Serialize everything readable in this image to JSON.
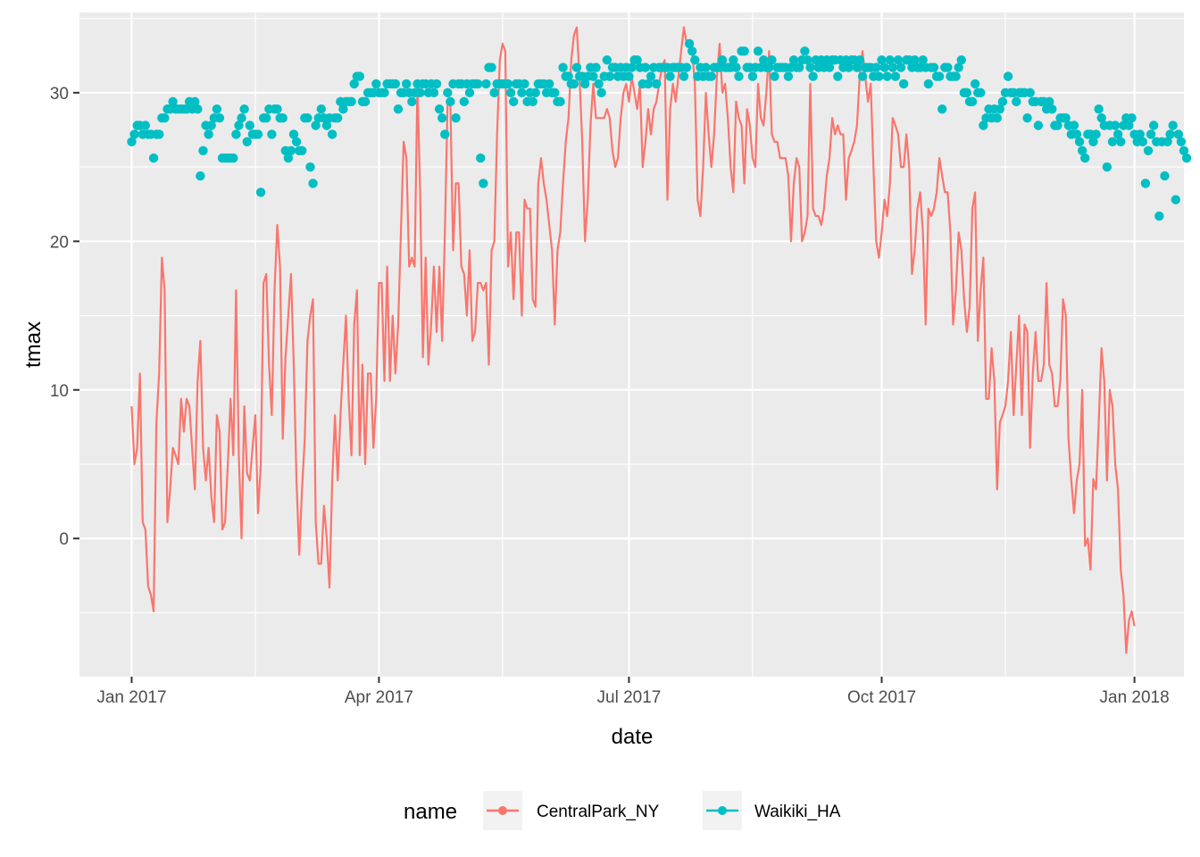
{
  "chart_data": {
    "type": "line",
    "xlabel": "date",
    "ylabel": "tmax",
    "xlim": [
      "2016-12-13",
      "2018-01-19"
    ],
    "ylim": [
      -9.3,
      35.4
    ],
    "x_ticks": [
      {
        "date": "2017-01-01",
        "label": "Jan 2017"
      },
      {
        "date": "2017-04-01",
        "label": "Apr 2017"
      },
      {
        "date": "2017-07-01",
        "label": "Jul 2017"
      },
      {
        "date": "2017-10-01",
        "label": "Oct 2017"
      },
      {
        "date": "2018-01-01",
        "label": "Jan 2018"
      }
    ],
    "x_minor_ticks": [
      "2017-02-15",
      "2017-05-16",
      "2017-08-15",
      "2017-11-15"
    ],
    "y_ticks": [
      0,
      10,
      20,
      30
    ],
    "y_minor_ticks": [
      -5,
      5,
      15,
      25,
      35
    ],
    "grid": true,
    "legend": {
      "title": "name",
      "position": "bottom"
    },
    "series": [
      {
        "name": "CentralPark_NY",
        "color": "#F8766D",
        "mark": "line",
        "start_date": "2017-01-01",
        "step_days": 1,
        "values": [
          8.9,
          5.0,
          6.1,
          11.1,
          1.1,
          0.6,
          -3.2,
          -3.8,
          -4.9,
          7.8,
          11.1,
          18.9,
          16.7,
          1.1,
          3.3,
          6.1,
          5.6,
          5.0,
          9.4,
          7.2,
          9.4,
          8.9,
          6.1,
          3.3,
          10.6,
          13.3,
          6.1,
          3.9,
          6.1,
          2.8,
          1.1,
          8.3,
          7.2,
          0.6,
          1.1,
          5.0,
          9.4,
          5.6,
          16.7,
          5.6,
          0.0,
          8.9,
          4.4,
          3.9,
          6.1,
          8.3,
          1.7,
          5.0,
          17.2,
          17.8,
          11.7,
          8.3,
          16.7,
          21.1,
          18.3,
          6.7,
          12.2,
          15.0,
          17.8,
          11.7,
          3.9,
          -1.1,
          3.3,
          6.7,
          13.3,
          15.0,
          16.1,
          1.1,
          -1.7,
          -1.7,
          2.2,
          0.0,
          -3.3,
          3.9,
          8.3,
          3.9,
          8.3,
          11.7,
          15.0,
          9.4,
          5.6,
          14.4,
          16.7,
          5.6,
          11.7,
          5.0,
          11.1,
          11.1,
          6.1,
          9.4,
          17.2,
          17.2,
          10.6,
          18.3,
          10.6,
          15.0,
          11.1,
          14.4,
          20.6,
          26.7,
          25.6,
          18.3,
          18.9,
          18.3,
          30.6,
          23.3,
          12.2,
          18.9,
          11.7,
          14.4,
          18.3,
          13.9,
          18.3,
          13.3,
          20.6,
          29.4,
          29.4,
          19.4,
          23.9,
          23.9,
          18.3,
          17.8,
          15.0,
          19.4,
          13.3,
          13.9,
          17.2,
          17.2,
          16.7,
          17.2,
          11.7,
          19.4,
          20.0,
          27.2,
          32.2,
          33.3,
          32.8,
          18.3,
          20.6,
          16.1,
          20.6,
          20.6,
          15.0,
          22.8,
          22.2,
          22.2,
          16.1,
          15.6,
          23.9,
          25.6,
          23.9,
          22.8,
          21.1,
          19.4,
          14.4,
          19.4,
          20.6,
          23.9,
          26.7,
          28.3,
          32.2,
          33.9,
          34.4,
          31.1,
          26.7,
          20.0,
          22.8,
          27.8,
          30.6,
          28.3,
          28.3,
          28.3,
          28.3,
          28.9,
          28.3,
          26.1,
          25.0,
          25.6,
          28.3,
          30.0,
          30.6,
          29.4,
          31.1,
          30.0,
          28.9,
          30.6,
          25.0,
          26.7,
          28.9,
          27.2,
          28.9,
          29.4,
          30.6,
          31.7,
          32.2,
          22.8,
          28.9,
          30.6,
          29.4,
          31.1,
          32.8,
          34.4,
          33.3,
          33.3,
          32.8,
          30.6,
          22.8,
          21.7,
          25.0,
          30.0,
          27.2,
          25.0,
          27.2,
          31.1,
          33.3,
          30.0,
          30.6,
          28.3,
          25.0,
          23.3,
          29.4,
          28.3,
          27.8,
          23.9,
          28.9,
          27.8,
          25.6,
          25.0,
          30.6,
          28.3,
          27.8,
          30.0,
          32.8,
          27.2,
          26.7,
          26.7,
          25.6,
          25.6,
          25.6,
          24.4,
          20.0,
          23.9,
          25.6,
          25.0,
          20.0,
          20.6,
          21.7,
          30.6,
          22.2,
          21.7,
          21.7,
          21.1,
          22.2,
          24.4,
          25.6,
          28.3,
          27.2,
          27.8,
          27.2,
          27.2,
          22.8,
          25.6,
          26.1,
          26.7,
          27.8,
          31.1,
          32.8,
          31.1,
          29.4,
          30.6,
          25.0,
          20.0,
          18.9,
          20.6,
          22.8,
          21.7,
          23.9,
          28.3,
          27.8,
          27.2,
          25.0,
          25.0,
          27.2,
          25.0,
          17.8,
          19.4,
          22.2,
          23.3,
          20.6,
          14.4,
          22.2,
          21.7,
          22.2,
          23.3,
          25.6,
          24.4,
          23.3,
          23.3,
          20.6,
          14.4,
          16.7,
          20.6,
          19.4,
          16.1,
          13.9,
          15.6,
          22.2,
          23.3,
          13.3,
          16.7,
          18.9,
          9.4,
          9.4,
          12.8,
          10.6,
          3.3,
          7.8,
          8.3,
          8.9,
          10.6,
          13.9,
          8.3,
          11.7,
          15.0,
          8.3,
          14.4,
          13.9,
          6.1,
          11.1,
          13.9,
          10.6,
          10.6,
          11.7,
          17.2,
          11.7,
          11.1,
          8.9,
          8.9,
          10.6,
          16.1,
          15.0,
          6.7,
          3.9,
          1.7,
          3.9,
          5.0,
          10.0,
          -0.5,
          0.0,
          -2.1,
          4.0,
          3.3,
          7.8,
          12.8,
          10.6,
          3.9,
          10.0,
          8.9,
          5.0,
          3.3,
          -2.1,
          -3.8,
          -7.7,
          -5.5,
          -4.9,
          -5.9
        ]
      },
      {
        "name": "Waikiki_HA",
        "color": "#00BFC4",
        "mark": "points",
        "start_date": "2017-01-01",
        "step_days": 1,
        "values": [
          26.7,
          27.2,
          27.8,
          27.8,
          27.2,
          27.8,
          27.2,
          27.2,
          25.6,
          27.2,
          27.2,
          28.3,
          28.3,
          28.9,
          28.9,
          29.4,
          28.9,
          28.9,
          28.9,
          28.9,
          28.9,
          29.4,
          28.9,
          29.4,
          28.9,
          24.4,
          26.1,
          27.8,
          27.2,
          27.8,
          28.3,
          28.9,
          28.3,
          25.6,
          25.6,
          25.6,
          25.6,
          25.6,
          27.2,
          27.8,
          28.3,
          28.9,
          26.7,
          27.8,
          27.2,
          27.2,
          27.2,
          23.3,
          28.3,
          28.3,
          28.9,
          27.2,
          28.9,
          28.9,
          28.3,
          28.3,
          26.1,
          25.6,
          26.1,
          27.2,
          26.7,
          26.1,
          26.1,
          28.3,
          28.3,
          25.0,
          23.9,
          27.8,
          28.3,
          28.9,
          28.3,
          27.8,
          28.3,
          27.2,
          28.3,
          28.3,
          29.4,
          28.9,
          29.4,
          29.4,
          29.4,
          30.6,
          31.1,
          31.1,
          29.4,
          29.4,
          30.0,
          30.0,
          30.0,
          30.6,
          30.0,
          30.0,
          30.0,
          30.6,
          30.6,
          30.6,
          30.6,
          28.9,
          30.0,
          30.0,
          30.6,
          30.0,
          29.4,
          30.0,
          30.6,
          30.0,
          30.6,
          30.6,
          30.0,
          30.6,
          30.0,
          30.6,
          28.9,
          28.3,
          27.2,
          30.0,
          29.4,
          30.6,
          28.3,
          30.6,
          30.6,
          29.4,
          30.6,
          30.0,
          30.6,
          30.6,
          30.6,
          25.6,
          23.9,
          30.6,
          31.7,
          31.7,
          30.0,
          30.6,
          30.6,
          30.6,
          30.6,
          30.6,
          30.0,
          29.4,
          30.6,
          30.6,
          30.0,
          30.6,
          29.4,
          30.0,
          29.4,
          30.0,
          30.6,
          30.6,
          30.6,
          30.0,
          30.6,
          30.0,
          30.0,
          29.4,
          29.4,
          31.7,
          31.1,
          31.1,
          30.6,
          30.6,
          31.7,
          31.1,
          31.1,
          30.6,
          31.1,
          31.7,
          31.1,
          31.7,
          30.6,
          30.0,
          31.1,
          32.2,
          31.1,
          31.7,
          31.7,
          31.1,
          31.7,
          31.1,
          31.7,
          31.1,
          31.7,
          32.2,
          32.2,
          31.7,
          30.6,
          31.7,
          30.6,
          31.1,
          31.7,
          30.6,
          31.7,
          31.7,
          31.7,
          31.7,
          31.1,
          31.7,
          31.7,
          31.7,
          31.7,
          31.1,
          31.7,
          33.3,
          32.8,
          32.2,
          31.1,
          31.7,
          31.1,
          31.7,
          31.1,
          31.1,
          31.7,
          31.7,
          31.7,
          32.2,
          31.7,
          31.7,
          31.7,
          32.2,
          31.7,
          31.1,
          32.8,
          32.8,
          31.7,
          31.7,
          31.1,
          31.7,
          32.8,
          31.7,
          32.2,
          31.7,
          31.7,
          32.2,
          31.1,
          31.7,
          31.7,
          31.7,
          31.7,
          31.1,
          31.7,
          32.2,
          31.7,
          31.7,
          32.2,
          32.8,
          32.2,
          31.7,
          31.1,
          32.2,
          31.7,
          32.2,
          31.7,
          32.2,
          31.7,
          32.2,
          32.2,
          31.1,
          32.2,
          31.7,
          32.2,
          31.7,
          32.2,
          32.2,
          31.7,
          32.2,
          31.1,
          31.7,
          31.7,
          31.7,
          31.1,
          31.7,
          31.1,
          32.2,
          31.7,
          31.1,
          32.2,
          31.7,
          31.1,
          32.2,
          31.7,
          30.6,
          32.2,
          32.2,
          31.7,
          32.2,
          31.7,
          31.7,
          32.2,
          31.7,
          30.6,
          31.7,
          31.7,
          31.1,
          31.1,
          28.9,
          31.7,
          31.7,
          31.1,
          31.1,
          31.1,
          31.7,
          32.2,
          30.0,
          30.0,
          29.4,
          29.4,
          30.6,
          30.0,
          30.0,
          27.8,
          28.3,
          28.9,
          28.3,
          28.9,
          28.3,
          28.9,
          29.4,
          30.0,
          31.1,
          30.0,
          30.0,
          29.4,
          30.0,
          30.0,
          30.0,
          28.3,
          30.0,
          29.4,
          29.4,
          27.8,
          29.4,
          29.4,
          28.9,
          29.4,
          28.9,
          27.8,
          27.8,
          28.3,
          28.3,
          28.3,
          27.8,
          27.2,
          27.8,
          27.2,
          26.7,
          26.1,
          25.6,
          27.2,
          27.2,
          26.7,
          27.2,
          28.9,
          28.3,
          27.8,
          25.0,
          27.8,
          26.7,
          27.8,
          27.2,
          26.7,
          27.8,
          28.3,
          27.8,
          28.3,
          27.2,
          26.7,
          27.2,
          26.7,
          23.9,
          26.1,
          27.2,
          27.8,
          26.7,
          21.7,
          26.7,
          24.4,
          26.7,
          27.2,
          27.8,
          22.8,
          27.2,
          26.7,
          26.1,
          25.6
        ]
      }
    ]
  }
}
